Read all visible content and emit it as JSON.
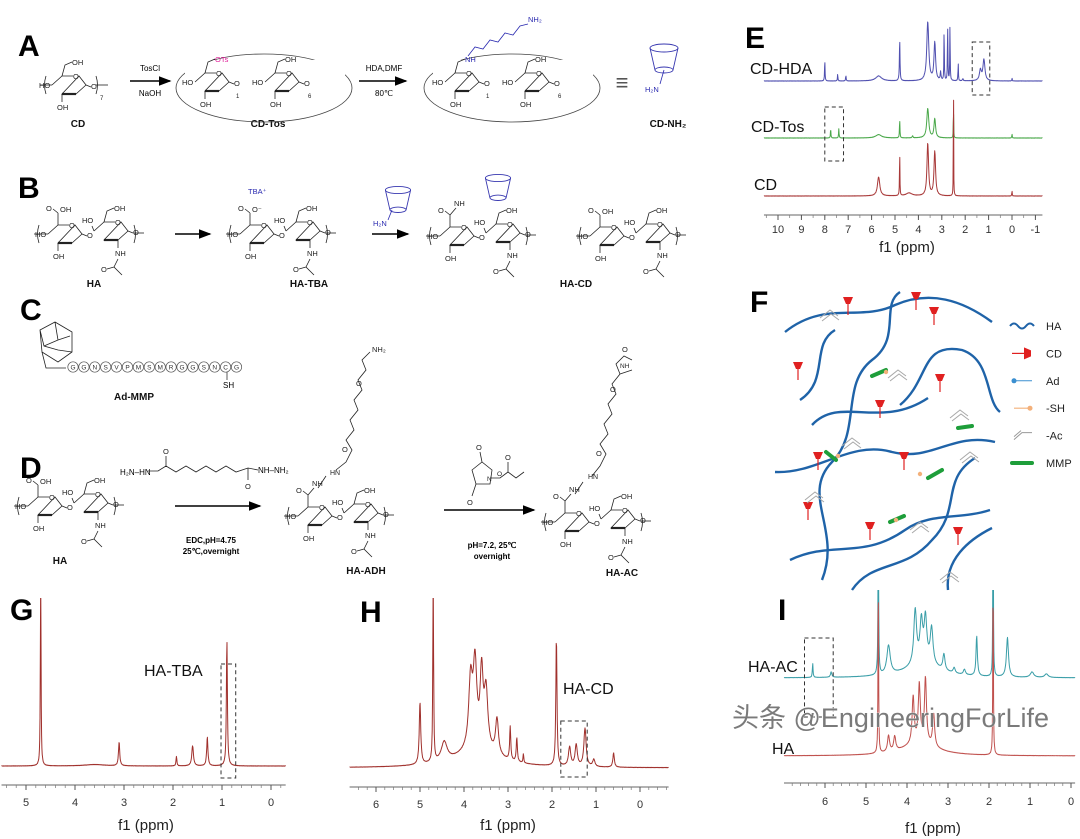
{
  "panels": {
    "A": "A",
    "B": "B",
    "C": "C",
    "D": "D",
    "E": "E",
    "F": "F",
    "G": "G",
    "H": "H",
    "I": "I"
  },
  "atoms": {
    "OH": "OH",
    "HO": "HO",
    "O": "O",
    "NH": "NH",
    "HN": "HN",
    "N": "N",
    "OTs": "OTs",
    "H2N": "H₂N",
    "NH2": "NH₂",
    "SH": "SH",
    "TBA": "TBA⁺",
    "Ominus": "O⁻",
    "equiv": "≡",
    "n7": "7",
    "n1": "1",
    "n6": "6"
  },
  "schemeA": {
    "step1_top": "TosCl",
    "step1_bottom": "NaOH",
    "step2_top": "HDA,DMF",
    "step2_bottom": "80℃",
    "label_cd": "CD",
    "label_cdtos": "CD-Tos",
    "label_cdnh2": "CD-NH₂"
  },
  "schemeB": {
    "label_ha": "HA",
    "label_hatba": "HA-TBA",
    "label_hacd": "HA-CD"
  },
  "schemeC": {
    "sequence": [
      "G",
      "G",
      "N",
      "S",
      "V",
      "P",
      "M",
      "S",
      "M",
      "R",
      "G",
      "G",
      "S",
      "N",
      "C",
      "G"
    ],
    "label": "Ad-MMP"
  },
  "schemeD": {
    "adh_left": "H₂N–HN",
    "adh_right": "NH–NH₂",
    "step1_line1": "EDC,pH=4.75",
    "step1_line2": "25℃,overnight",
    "step2_line1": "pH=7.2, 25℃",
    "step2_line2": "overnight",
    "label_ha": "HA",
    "label_haadh": "HA-ADH",
    "label_haac": "HA-AC"
  },
  "legend": [
    {
      "label": "HA",
      "icon": "wavy-line-icon",
      "color": "#1f63a8"
    },
    {
      "label": "CD",
      "icon": "cone-icon",
      "color": "#e02020"
    },
    {
      "label": "Ad",
      "icon": "ball-stick-icon",
      "color": "#3b8fd0"
    },
    {
      "label": "-SH",
      "icon": "thiol-icon",
      "color": "#f3b07a"
    },
    {
      "label": "-Ac",
      "icon": "double-bond-icon",
      "color": "#999999"
    },
    {
      "label": "MMP",
      "icon": "peptide-bar-icon",
      "color": "#1e9e3a"
    }
  ],
  "watermark": "头条 @EngineeringForLife",
  "chart_data": [
    {
      "panel": "E",
      "type": "line",
      "title": "",
      "xlabel": "f1 (ppm)",
      "ylabel": "",
      "xlim": [
        10.6,
        -1.3
      ],
      "xticks": [
        "10",
        "9",
        "8",
        "7",
        "6",
        "5",
        "4",
        "3",
        "2",
        "1",
        "0",
        "-1"
      ],
      "xtick_values": [
        10,
        9,
        8,
        7,
        6,
        5,
        4,
        3,
        2,
        1,
        0,
        -1
      ],
      "highlight_ppm": [
        [
          1.7,
          0.95
        ],
        [
          8.0,
          7.2
        ]
      ],
      "series": [
        {
          "name": "CD-HDA",
          "color": "#5050b0",
          "peaks": [
            [
              8.0,
              0.5,
              0.012
            ],
            [
              7.45,
              0.16,
              0.012
            ],
            [
              7.1,
              0.13,
              0.012
            ],
            [
              5.7,
              0.12,
              0.15
            ],
            [
              4.8,
              1.0,
              0.015
            ],
            [
              3.6,
              1.4,
              0.05
            ],
            [
              3.3,
              0.9,
              0.04
            ],
            [
              3.05,
              0.2,
              0.02
            ],
            [
              2.9,
              1.3,
              0.01
            ],
            [
              2.75,
              1.4,
              0.01
            ],
            [
              2.65,
              1.4,
              0.01
            ],
            [
              2.3,
              0.45,
              0.01
            ],
            [
              2.1,
              0.05,
              0.02
            ],
            [
              1.35,
              0.25,
              0.05
            ],
            [
              1.2,
              0.5,
              0.05
            ],
            [
              0.0,
              0.07,
              0.01
            ]
          ]
        },
        {
          "name": "CD-Tos",
          "color": "#4aa84a",
          "peaks": [
            [
              7.75,
              0.22,
              0.012
            ],
            [
              7.4,
              0.22,
              0.012
            ],
            [
              5.7,
              0.08,
              0.15
            ],
            [
              4.8,
              0.45,
              0.012
            ],
            [
              4.25,
              0.05,
              0.02
            ],
            [
              3.6,
              0.7,
              0.05
            ],
            [
              3.3,
              0.45,
              0.04
            ],
            [
              2.5,
              0.8,
              0.008
            ],
            [
              0.0,
              0.1,
              0.01
            ]
          ]
        },
        {
          "name": "CD",
          "color": "#a83838",
          "peaks": [
            [
              5.7,
              0.45,
              0.06
            ],
            [
              4.8,
              1.1,
              0.01
            ],
            [
              4.4,
              0.07,
              0.15
            ],
            [
              3.6,
              1.25,
              0.04
            ],
            [
              3.3,
              1.05,
              0.04
            ],
            [
              2.5,
              4.0,
              0.006
            ],
            [
              0.0,
              0.13,
              0.01
            ]
          ]
        }
      ]
    },
    {
      "panel": "G",
      "type": "line",
      "title": "",
      "xlabel": "f1 (ppm)",
      "ylabel": "",
      "xlim": [
        5.5,
        -0.3
      ],
      "xticks": [
        "5",
        "4",
        "3",
        "2",
        "1",
        "0"
      ],
      "xtick_values": [
        5,
        4,
        3,
        2,
        1,
        0
      ],
      "highlight_ppm": [
        [
          1.02,
          0.72
        ]
      ],
      "series": [
        {
          "name": "HA-TBA",
          "color": "#a0302c",
          "peaks": [
            [
              4.7,
              4.0,
              0.008
            ],
            [
              3.6,
              0.03,
              0.25
            ],
            [
              3.1,
              0.5,
              0.015
            ],
            [
              1.93,
              0.2,
              0.01
            ],
            [
              1.6,
              0.42,
              0.02
            ],
            [
              1.3,
              0.6,
              0.015
            ],
            [
              0.9,
              2.6,
              0.012
            ]
          ]
        }
      ]
    },
    {
      "panel": "H",
      "type": "line",
      "title": "",
      "xlabel": "f1 (ppm)",
      "ylabel": "",
      "xlim": [
        6.6,
        -0.65
      ],
      "xticks": [
        "6",
        "5",
        "4",
        "3",
        "2",
        "1",
        "0"
      ],
      "xtick_values": [
        6,
        5,
        4,
        3,
        2,
        1,
        0
      ],
      "highlight_ppm": [
        [
          1.8,
          1.2
        ]
      ],
      "series": [
        {
          "name": "HA-CD",
          "color": "#a0302c",
          "peaks": [
            [
              5.0,
              1.3,
              0.02
            ],
            [
              4.7,
              4.0,
              0.01
            ],
            [
              4.45,
              0.4,
              0.08
            ],
            [
              3.85,
              1.4,
              0.05
            ],
            [
              3.75,
              1.7,
              0.05
            ],
            [
              3.6,
              1.5,
              0.04
            ],
            [
              3.5,
              1.2,
              0.05
            ],
            [
              3.25,
              0.75,
              0.04
            ],
            [
              2.95,
              0.7,
              0.015
            ],
            [
              2.8,
              0.5,
              0.015
            ],
            [
              2.65,
              0.2,
              0.01
            ],
            [
              3.7,
              0.35,
              0.6
            ],
            [
              1.9,
              2.7,
              0.015
            ],
            [
              1.6,
              0.4,
              0.03
            ],
            [
              1.45,
              0.45,
              0.03
            ],
            [
              1.25,
              0.8,
              0.03
            ],
            [
              1.05,
              0.15,
              0.03
            ],
            [
              0.6,
              0.3,
              0.02
            ]
          ]
        }
      ]
    },
    {
      "panel": "I",
      "type": "line",
      "title": "",
      "xlabel": "f1 (ppm)",
      "ylabel": "",
      "xlim": [
        7.0,
        -0.1
      ],
      "xticks": [
        "6",
        "5",
        "4",
        "3",
        "2",
        "1",
        "0"
      ],
      "xtick_values": [
        6,
        5,
        4,
        3,
        2,
        1,
        0
      ],
      "highlight_ppm": [
        [
          6.5,
          5.8
        ]
      ],
      "series": [
        {
          "name": "HA-AC",
          "color": "#3a9ea8",
          "peaks": [
            [
              6.3,
              0.4,
              0.01
            ],
            [
              5.85,
              0.15,
              0.02
            ],
            [
              4.7,
              4.0,
              0.01
            ],
            [
              4.45,
              0.8,
              0.05
            ],
            [
              3.8,
              1.5,
              0.04
            ],
            [
              3.65,
              1.1,
              0.04
            ],
            [
              3.55,
              1.2,
              0.04
            ],
            [
              3.4,
              1.0,
              0.04
            ],
            [
              3.6,
              0.4,
              0.5
            ],
            [
              3.1,
              0.45,
              0.03
            ],
            [
              2.85,
              0.15,
              0.03
            ],
            [
              2.6,
              0.15,
              0.03
            ],
            [
              2.3,
              1.1,
              0.02
            ],
            [
              1.9,
              5.0,
              0.008
            ],
            [
              1.55,
              1.1,
              0.03
            ],
            [
              0.95,
              0.15,
              0.05
            ],
            [
              0.6,
              0.1,
              0.05
            ]
          ]
        },
        {
          "name": "HA",
          "color": "#c0504d",
          "peaks": [
            [
              4.7,
              5.0,
              0.008
            ],
            [
              4.45,
              0.45,
              0.03
            ],
            [
              4.3,
              0.4,
              0.03
            ],
            [
              3.85,
              1.3,
              0.03
            ],
            [
              3.7,
              1.6,
              0.03
            ],
            [
              3.55,
              1.8,
              0.03
            ],
            [
              3.35,
              0.9,
              0.03
            ],
            [
              3.7,
              0.35,
              0.5
            ],
            [
              1.9,
              5.0,
              0.008
            ]
          ]
        }
      ]
    }
  ]
}
